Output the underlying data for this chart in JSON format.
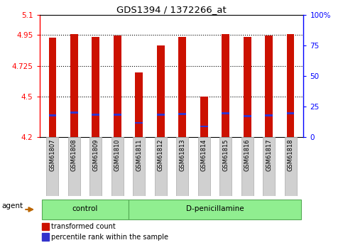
{
  "title": "GDS1394 / 1372266_at",
  "samples": [
    "GSM61807",
    "GSM61808",
    "GSM61809",
    "GSM61810",
    "GSM61811",
    "GSM61812",
    "GSM61813",
    "GSM61814",
    "GSM61815",
    "GSM61816",
    "GSM61817",
    "GSM61818"
  ],
  "bar_top": [
    4.93,
    4.957,
    4.935,
    4.945,
    4.675,
    4.875,
    4.935,
    4.5,
    4.958,
    4.935,
    4.945,
    4.958
  ],
  "bar_bottom": 4.2,
  "blue_marker": [
    4.36,
    4.38,
    4.365,
    4.365,
    4.305,
    4.365,
    4.37,
    4.28,
    4.375,
    4.355,
    4.36,
    4.375
  ],
  "ylim_left": [
    4.2,
    5.1
  ],
  "yticks_left": [
    4.2,
    4.5,
    4.725,
    4.95,
    5.1
  ],
  "ytick_labels_left": [
    "4.2",
    "4.5",
    "4.725",
    "4.95",
    "5.1"
  ],
  "yticks_right": [
    0,
    25,
    50,
    75,
    100
  ],
  "ytick_labels_right": [
    "0",
    "25",
    "50",
    "75",
    "100%"
  ],
  "bar_color": "#cc1100",
  "blue_color": "#3333cc",
  "control_group_count": 4,
  "control_label": "control",
  "dpen_label": "D-penicillamine",
  "agent_label": "agent",
  "legend_red": "transformed count",
  "legend_blue": "percentile rank within the sample",
  "bar_width": 0.35,
  "label_bg_color": "#d0d0d0",
  "label_edge_color": "#aaaaaa",
  "group_bg_color": "#90ee90",
  "group_edge_color": "#55aa55",
  "agent_arrow_color": "#bb6600"
}
